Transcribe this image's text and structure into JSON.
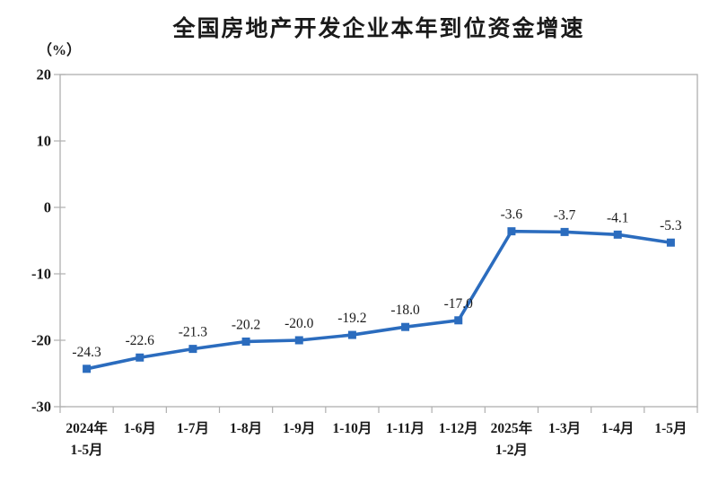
{
  "chart_data": {
    "type": "line",
    "title": "全国房地产开发企业本年到位资金增速",
    "unit_label": "（%）",
    "categories": [
      [
        "2024年",
        "1-5月"
      ],
      [
        "1-6月"
      ],
      [
        "1-7月"
      ],
      [
        "1-8月"
      ],
      [
        "1-9月"
      ],
      [
        "1-10月"
      ],
      [
        "1-11月"
      ],
      [
        "1-12月"
      ],
      [
        "2025年",
        "1-2月"
      ],
      [
        "1-3月"
      ],
      [
        "1-4月"
      ],
      [
        "1-5月"
      ]
    ],
    "values": [
      -24.3,
      -22.6,
      -21.3,
      -20.2,
      -20.0,
      -19.2,
      -18.0,
      -17.0,
      -3.6,
      -3.7,
      -4.1,
      -5.3
    ],
    "data_labels": [
      "-24.3",
      "-22.6",
      "-21.3",
      "-20.2",
      "-20.0",
      "-19.2",
      "-18.0",
      "-17.0",
      "-3.6",
      "-3.7",
      "-4.1",
      "-5.3"
    ],
    "ylim": [
      -30,
      20
    ],
    "yticks": [
      20,
      10,
      0,
      -10,
      -20,
      -30
    ],
    "grid": false,
    "legend_position": "none",
    "marker": "square",
    "line_color": "#2B6CBE",
    "axis_color": "#AFAFAF",
    "text_color": "#1A1A1A"
  }
}
